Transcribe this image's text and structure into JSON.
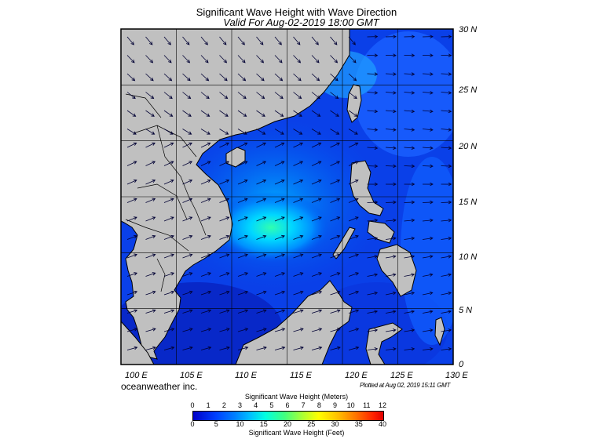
{
  "title": "Significant Wave Height with Wave Direction",
  "subtitle": "Valid For Aug-02-2019 18:00 GMT",
  "lon_labels": [
    "100 E",
    "105 E",
    "110 E",
    "115 E",
    "120 E",
    "125 E",
    "130 E"
  ],
  "lat_labels": [
    "30 N",
    "25 N",
    "20 N",
    "15 N",
    "10 N",
    "5 N",
    "0"
  ],
  "brand": "oceanweather inc.",
  "plotted": "Plotted at Aug 02, 2019 15:11 GMT",
  "colorbar": {
    "title_meters": "Significant Wave Height (Meters)",
    "title_feet": "Significant Wave Height (Feet)",
    "meter_ticks": [
      "0",
      "1",
      "2",
      "3",
      "4",
      "5",
      "6",
      "7",
      "8",
      "9",
      "10",
      "11",
      "12"
    ],
    "feet_ticks": [
      "0",
      "5",
      "10",
      "15",
      "20",
      "25",
      "30",
      "35",
      "40"
    ]
  },
  "map_extent": {
    "lon": [
      100,
      130
    ],
    "lat": [
      0,
      30
    ]
  },
  "colors": {
    "land": "#c0c0c0",
    "sea_low": "#0000c8",
    "sea_high": "#00ffe0",
    "arrow": "#000033"
  }
}
